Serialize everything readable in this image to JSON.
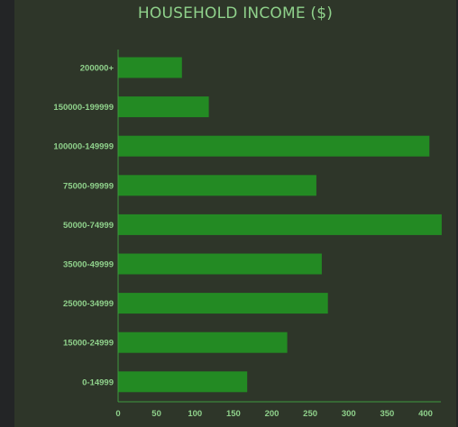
{
  "chart_data": {
    "type": "bar",
    "orientation": "horizontal",
    "title": "HOUSEHOLD INCOME ($)",
    "xlabel": "",
    "ylabel": "",
    "categories": [
      "200000+",
      "150000-199999",
      "100000-149999",
      "75000-99999",
      "50000-74999",
      "35000-49999",
      "25000-34999",
      "15000-24999",
      "0-14999"
    ],
    "values": [
      83,
      118,
      405,
      258,
      421,
      265,
      273,
      220,
      168
    ],
    "xlim": [
      0,
      420
    ],
    "xticks": [
      "0",
      "50",
      "100",
      "150",
      "200",
      "250",
      "300",
      "350",
      "400"
    ],
    "grid": false,
    "legend": "none",
    "colors": {
      "bar": "#238a23",
      "text": "#8fd18b",
      "axis": "#3f9a3f",
      "panel": "#2e3629",
      "page": "#232526"
    }
  }
}
